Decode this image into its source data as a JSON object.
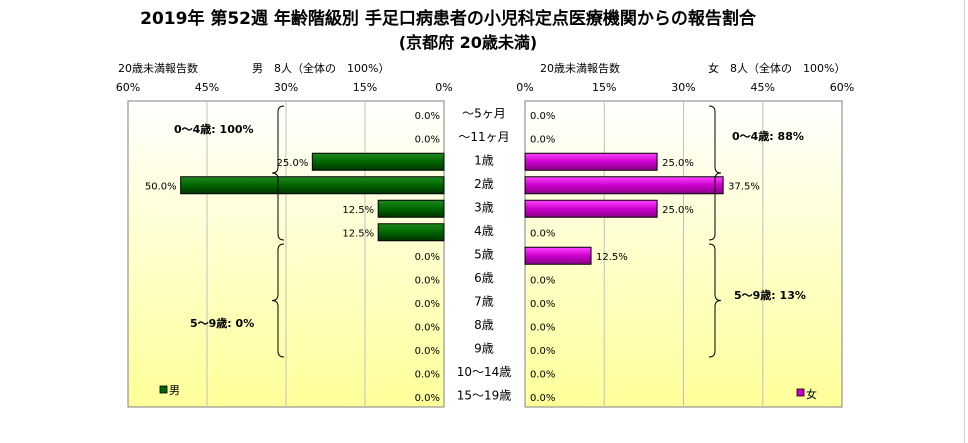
{
  "title": "2019年 第52週 年齢階級別 手足口病患者の小児科定点医療機関からの報告割合",
  "subtitle": "(京都府 20歳未満)",
  "colors": {
    "male_bar": "#006600",
    "female_bar": "#cc00cc",
    "plot_top": "#ffffff",
    "plot_bottom": "#ffff99",
    "grid": "#c0c0c0"
  },
  "chart_data": {
    "type": "bar",
    "orientation": "horizontal",
    "layout": "population-pyramid",
    "categories": [
      "～5ヶ月",
      "～11ヶ月",
      "1歳",
      "2歳",
      "3歳",
      "4歳",
      "5歳",
      "6歳",
      "7歳",
      "8歳",
      "9歳",
      "10～14歳",
      "15～19歳"
    ],
    "axis_ticks": [
      "0%",
      "15%",
      "30%",
      "45%",
      "60%"
    ],
    "xlim": [
      0,
      60
    ],
    "grid": true,
    "series": [
      {
        "name": "男",
        "side": "left",
        "axis_caption": "20歳未満報告数",
        "count_text": "男　8人（全体の　100%）",
        "values": [
          0.0,
          0.0,
          25.0,
          50.0,
          12.5,
          12.5,
          0.0,
          0.0,
          0.0,
          0.0,
          0.0,
          0.0,
          0.0
        ],
        "value_labels": [
          "0.0%",
          "0.0%",
          "25.0%",
          "50.0%",
          "12.5%",
          "12.5%",
          "0.0%",
          "0.0%",
          "0.0%",
          "0.0%",
          "0.0%",
          "0.0%",
          "0.0%"
        ],
        "group_annotations": [
          "0～4歳: 100%",
          "5～9歳: 0%"
        ],
        "legend_label": "男"
      },
      {
        "name": "女",
        "side": "right",
        "axis_caption": "20歳未満報告数",
        "count_text": "女　8人（全体の　100%）",
        "values": [
          0.0,
          0.0,
          25.0,
          37.5,
          25.0,
          0.0,
          12.5,
          0.0,
          0.0,
          0.0,
          0.0,
          0.0,
          0.0
        ],
        "value_labels": [
          "0.0%",
          "0.0%",
          "25.0%",
          "37.5%",
          "25.0%",
          "0.0%",
          "12.5%",
          "0.0%",
          "0.0%",
          "0.0%",
          "0.0%",
          "0.0%",
          "0.0%"
        ],
        "group_annotations": [
          "0～4歳: 88%",
          "5～9歳: 13%"
        ],
        "legend_label": "女"
      }
    ]
  }
}
